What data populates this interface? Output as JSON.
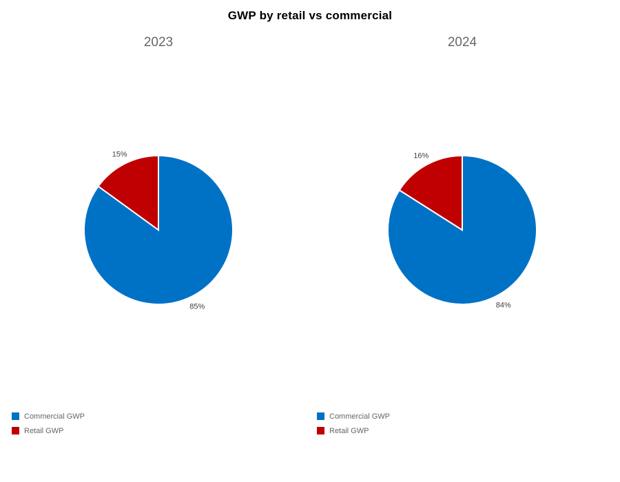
{
  "page": {
    "title": "GWP by retail vs commercial",
    "background": "#ffffff"
  },
  "colors": {
    "commercial": "#0072C6",
    "retail": "#C00000",
    "title_text": "#000000",
    "subtitle_text": "#666666",
    "data_label_text": "#404040",
    "legend_text": "#656565"
  },
  "chart_data": [
    {
      "type": "pie",
      "title": "2023",
      "labels": [
        "Commercial GWP",
        "Retail GWP"
      ],
      "values": [
        85,
        15
      ],
      "unit": "%",
      "data_labels": [
        "85%",
        "15%"
      ],
      "colors": [
        "#0072C6",
        "#C00000"
      ],
      "start_angle": "top",
      "direction": "clockwise",
      "legend_position": "bottom-left"
    },
    {
      "type": "pie",
      "title": "2024",
      "labels": [
        "Commercial GWP",
        "Retail GWP"
      ],
      "values": [
        84,
        16
      ],
      "unit": "%",
      "data_labels": [
        "84%",
        "16%"
      ],
      "colors": [
        "#0072C6",
        "#C00000"
      ],
      "start_angle": "top",
      "direction": "clockwise",
      "legend_position": "bottom-left"
    }
  ]
}
